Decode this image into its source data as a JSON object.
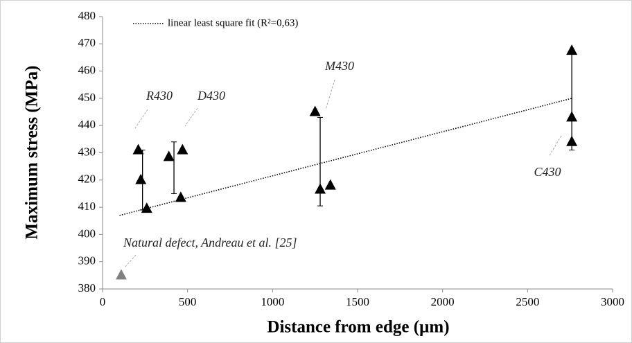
{
  "chart_data": {
    "type": "scatter",
    "x_label": "Distance from edge (µm)",
    "y_label": "Maximum stress (MPa)",
    "xlim": [
      0,
      3000
    ],
    "xticks": [
      0,
      500,
      1000,
      1500,
      2000,
      2500,
      3000
    ],
    "ylim": [
      380,
      480
    ],
    "yticks": [
      380,
      390,
      400,
      410,
      420,
      430,
      440,
      450,
      460,
      470,
      480
    ],
    "grid": false,
    "series": [
      {
        "color": "#000000",
        "x": [
          210,
          225,
          260,
          390,
          470,
          460,
          1250,
          1280,
          1340,
          2760,
          2760,
          2760
        ],
        "values": [
          431,
          420,
          409.5,
          428.5,
          431,
          413.5,
          445,
          416.5,
          418,
          467.5,
          443,
          434
        ]
      },
      {
        "color": "#808080",
        "x": [
          110
        ],
        "values": [
          385
        ]
      }
    ],
    "error_bars": {
      "x": [
        235,
        420,
        1280,
        2760
      ],
      "values": [
        420,
        424.5,
        426.75,
        449
      ],
      "errors": [
        11,
        9.5,
        16.25,
        18
      ]
    },
    "fit": {
      "name": "linear least square fit (R²=0,63)",
      "x": [
        100,
        2760
      ],
      "values": [
        407,
        450
      ]
    },
    "annotations": [
      "R430",
      "D430",
      "M430",
      "C430",
      "Natural defect, Andreau et al. [25]"
    ]
  }
}
